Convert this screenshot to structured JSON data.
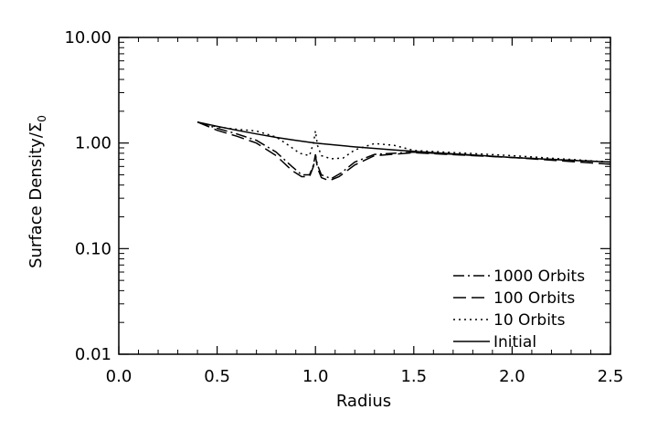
{
  "chart_data": {
    "type": "line",
    "xlabel": "Radius",
    "ylabel": "Surface Density/Σ",
    "ylabel_subscript": "0",
    "xlim": [
      0.0,
      2.5
    ],
    "ylim": [
      0.01,
      10.0
    ],
    "yscale": "log",
    "grid": false,
    "legend_position": "bottom-right",
    "x_ticks": [
      0.0,
      0.5,
      1.0,
      1.5,
      2.0,
      2.5
    ],
    "x_tick_labels": [
      "0.0",
      "0.5",
      "1.0",
      "1.5",
      "2.0",
      "2.5"
    ],
    "y_ticks": [
      0.01,
      0.1,
      1.0,
      10.0
    ],
    "y_tick_labels": [
      "0.01",
      "0.10",
      "1.00",
      "10.00"
    ],
    "series": [
      {
        "name": "1000 Orbits",
        "style": "dash-dot",
        "color": "#000000",
        "x": [
          0.4,
          0.5,
          0.6,
          0.7,
          0.8,
          0.88,
          0.93,
          0.97,
          0.99,
          1.0,
          1.01,
          1.03,
          1.08,
          1.13,
          1.2,
          1.3,
          1.5,
          2.0,
          2.5
        ],
        "y": [
          1.58,
          1.38,
          1.22,
          1.06,
          0.82,
          0.6,
          0.5,
          0.5,
          0.62,
          0.78,
          0.62,
          0.5,
          0.46,
          0.52,
          0.66,
          0.78,
          0.82,
          0.73,
          0.66
        ]
      },
      {
        "name": "100 Orbits",
        "style": "dashed",
        "color": "#000000",
        "x": [
          0.4,
          0.5,
          0.6,
          0.7,
          0.8,
          0.88,
          0.93,
          0.97,
          0.99,
          1.0,
          1.01,
          1.03,
          1.07,
          1.12,
          1.2,
          1.3,
          1.5,
          2.0,
          2.5
        ],
        "y": [
          1.58,
          1.32,
          1.16,
          1.0,
          0.76,
          0.55,
          0.48,
          0.48,
          0.6,
          0.76,
          0.58,
          0.47,
          0.44,
          0.48,
          0.62,
          0.76,
          0.81,
          0.73,
          0.63
        ]
      },
      {
        "name": "10 Orbits",
        "style": "dotted",
        "color": "#000000",
        "x": [
          0.4,
          0.5,
          0.6,
          0.7,
          0.8,
          0.86,
          0.92,
          0.97,
          0.99,
          1.0,
          1.01,
          1.03,
          1.08,
          1.14,
          1.2,
          1.3,
          1.4,
          1.5,
          2.0,
          2.5
        ],
        "y": [
          1.58,
          1.42,
          1.35,
          1.3,
          1.14,
          0.96,
          0.8,
          0.76,
          1.0,
          1.3,
          0.95,
          0.76,
          0.71,
          0.72,
          0.86,
          0.99,
          0.95,
          0.85,
          0.76,
          0.66
        ]
      },
      {
        "name": "Initial",
        "style": "solid",
        "color": "#000000",
        "x": [
          0.4,
          0.5,
          0.6,
          0.7,
          0.8,
          0.9,
          1.0,
          1.2,
          1.4,
          1.6,
          1.8,
          2.0,
          2.2,
          2.5
        ],
        "y": [
          1.58,
          1.44,
          1.32,
          1.22,
          1.13,
          1.06,
          1.0,
          0.92,
          0.86,
          0.81,
          0.77,
          0.73,
          0.7,
          0.66
        ]
      }
    ]
  }
}
